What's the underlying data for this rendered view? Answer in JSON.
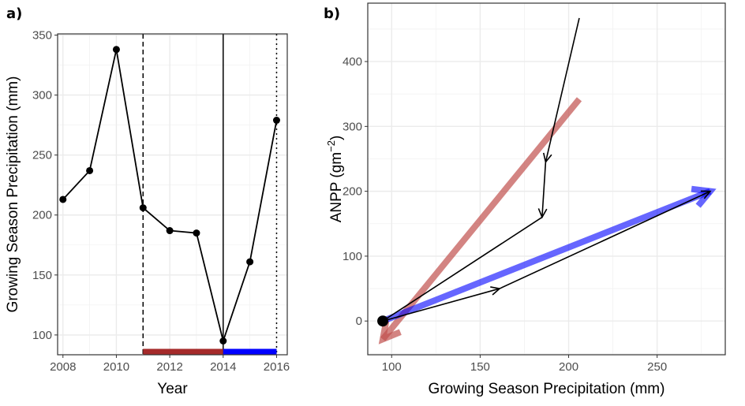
{
  "chart_data": [
    {
      "type": "line",
      "panel_label": "a)",
      "xlabel": "Year",
      "ylabel": "Growing Season Precipitation (mm)",
      "xlim": [
        2007.8,
        2016.4
      ],
      "ylim": [
        83.5,
        351
      ],
      "xticks": [
        2008,
        2010,
        2012,
        2014,
        2016
      ],
      "yticks": [
        100,
        150,
        200,
        250,
        300,
        350
      ],
      "grid": true,
      "x": [
        2008,
        2009,
        2010,
        2011,
        2012,
        2013,
        2014,
        2015,
        2016
      ],
      "y": [
        213,
        237,
        338,
        206,
        187,
        185,
        95,
        161,
        279
      ],
      "vlines": [
        {
          "x": 2011,
          "style": "dashed"
        },
        {
          "x": 2014,
          "style": "solid"
        },
        {
          "x": 2016,
          "style": "dotted"
        }
      ],
      "periods": [
        {
          "from": 2011,
          "to": 2014,
          "color": "#a52a2a"
        },
        {
          "from": 2014,
          "to": 2016,
          "color": "#0000ff"
        }
      ]
    },
    {
      "type": "line",
      "panel_label": "b)",
      "xlabel": "Growing Season Precipitation (mm)",
      "ylabel": "ANPP (gm",
      "ylabel_sup": "−2",
      "ylabel_end": ")",
      "xlim": [
        86.5,
        288.5
      ],
      "ylim": [
        -52,
        490
      ],
      "xticks": [
        100,
        150,
        200,
        250
      ],
      "yticks": [
        0,
        100,
        200,
        300,
        400
      ],
      "grid": true,
      "path": {
        "x": [
          206,
          187,
          185,
          95,
          161,
          280
        ],
        "y": [
          467,
          245,
          160,
          0,
          50,
          200
        ],
        "color": "#000000"
      },
      "start_point": {
        "x": 95,
        "y": 0
      },
      "trend_arrows": [
        {
          "from": [
            206,
            342
          ],
          "to": [
            95,
            -28
          ],
          "color": "#c0504d",
          "opacity": 0.7
        },
        {
          "from": [
            95,
            0
          ],
          "to": [
            280,
            200
          ],
          "color": "#0000ff",
          "opacity": 0.6
        }
      ]
    }
  ]
}
